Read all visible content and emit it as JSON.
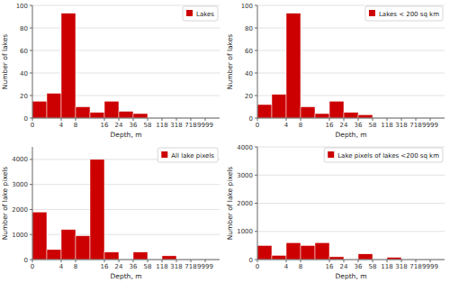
{
  "chart_data": [
    {
      "type": "histogram",
      "xlabel": "Depth, m",
      "ylabel": "Number of lakes",
      "bins": [
        0,
        2,
        4,
        8,
        12,
        16,
        24,
        36,
        58,
        118,
        318,
        718,
        9999,
        10000
      ],
      "series": [
        {
          "name": "Lakes",
          "color": "#cc0000",
          "values": [
            15,
            22,
            93,
            10,
            5,
            15,
            6,
            4,
            0,
            0,
            0,
            0,
            0
          ]
        }
      ],
      "xlim": [
        0,
        10000
      ],
      "xticks": [
        0,
        4,
        8,
        16,
        24,
        36,
        58,
        118,
        318,
        718,
        9999
      ],
      "ylim": [
        0,
        100
      ],
      "yticks": [
        0,
        20,
        40,
        60,
        80,
        100
      ],
      "grid": true,
      "legend": "upper right"
    },
    {
      "type": "histogram",
      "xlabel": "Depth, m",
      "ylabel": "Number of lakes",
      "bins": [
        0,
        2,
        4,
        8,
        12,
        16,
        24,
        36,
        58,
        118,
        318,
        718,
        9999,
        10000
      ],
      "series": [
        {
          "name": "Lakes < 200 sq km",
          "color": "#cc0000",
          "values": [
            12,
            21,
            93,
            10,
            4,
            15,
            5,
            3,
            0,
            0,
            0,
            0,
            0
          ]
        }
      ],
      "xlim": [
        0,
        10000
      ],
      "xticks": [
        0,
        4,
        8,
        16,
        24,
        36,
        58,
        118,
        318,
        718,
        9999
      ],
      "ylim": [
        0,
        100
      ],
      "yticks": [
        0,
        20,
        40,
        60,
        80,
        100
      ],
      "grid": true,
      "legend": "upper right"
    },
    {
      "type": "histogram",
      "xlabel": "Depth, m",
      "ylabel": "Number of lake pixels",
      "bins": [
        0,
        2,
        4,
        8,
        12,
        16,
        24,
        36,
        58,
        118,
        318,
        718,
        9999,
        10000
      ],
      "series": [
        {
          "name": "All lake pixels",
          "color": "#cc0000",
          "values": [
            1900,
            400,
            1200,
            950,
            4000,
            300,
            0,
            300,
            0,
            150,
            0,
            0,
            0
          ]
        }
      ],
      "xlim": [
        0,
        10000
      ],
      "xticks": [
        0,
        4,
        8,
        16,
        24,
        36,
        58,
        118,
        318,
        718,
        9999
      ],
      "ylim": [
        0,
        4500
      ],
      "yticks": [
        0,
        1000,
        2000,
        3000,
        4000
      ],
      "grid": true,
      "legend": "upper right"
    },
    {
      "type": "histogram",
      "xlabel": "Depth, m",
      "ylabel": "Number of lake pixels",
      "bins": [
        0,
        2,
        4,
        8,
        12,
        16,
        24,
        36,
        58,
        118,
        318,
        718,
        9999,
        10000
      ],
      "series": [
        {
          "name": "Lake pixels of lakes <200 sq km",
          "color": "#cc0000",
          "values": [
            500,
            150,
            600,
            500,
            600,
            100,
            0,
            200,
            0,
            80,
            0,
            0,
            0
          ]
        }
      ],
      "xlim": [
        0,
        10000
      ],
      "xticks": [
        0,
        4,
        8,
        16,
        24,
        36,
        58,
        118,
        318,
        718,
        9999
      ],
      "ylim": [
        0,
        4000
      ],
      "yticks": [
        0,
        1000,
        2000,
        3000,
        4000
      ],
      "grid": true,
      "legend": "upper right"
    }
  ]
}
